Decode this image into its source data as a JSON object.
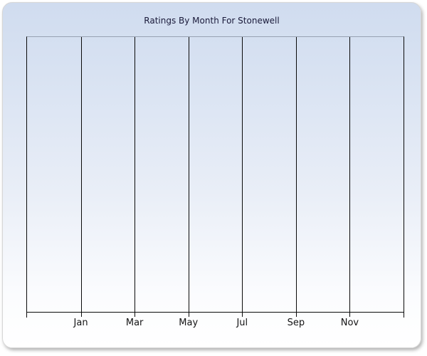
{
  "chart_data": {
    "type": "line",
    "title": "Ratings By Month For Stonewell",
    "categories": [
      "Jan",
      "Mar",
      "May",
      "Jul",
      "Sep",
      "Nov"
    ],
    "series": [],
    "plot_empty": true,
    "xlabel": "",
    "ylabel": "",
    "legend": "none",
    "grid": "vertical-gridlines-only",
    "x_tick_count": 8,
    "colors": {
      "panel_gradient_top": "#d0dcef",
      "panel_gradient_bottom": "#ffffff",
      "plot_frame": "#0a0a0a",
      "plot_top_border": "#98a2b2",
      "title_text": "#1a1a3a",
      "axis_label_text": "#141414",
      "page_background": "#ffffff"
    }
  }
}
